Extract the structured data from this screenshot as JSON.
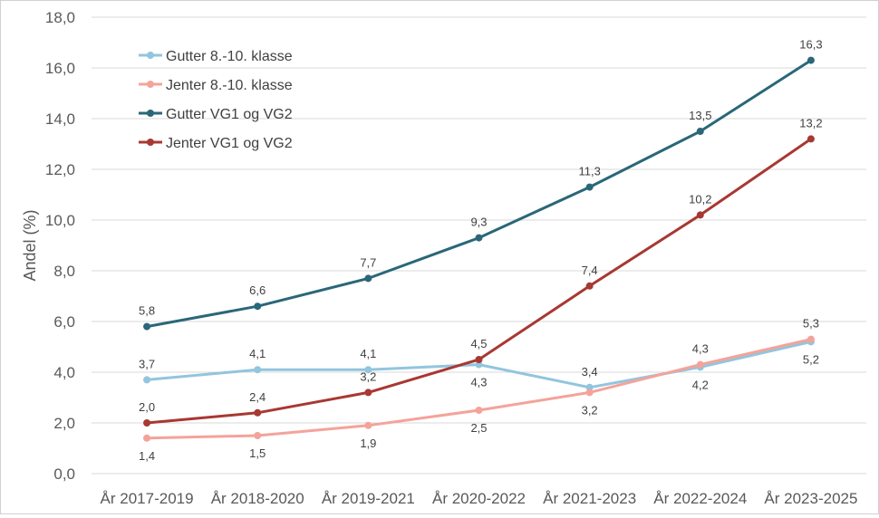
{
  "chart_data": {
    "type": "line",
    "title": "",
    "xlabel": "",
    "ylabel": "Andel (%)",
    "ylim": [
      0,
      18
    ],
    "ytick_step": 2,
    "ytick_labels": [
      "0,0",
      "2,0",
      "4,0",
      "6,0",
      "8,0",
      "10,0",
      "12,0",
      "14,0",
      "16,0",
      "18,0"
    ],
    "grid": true,
    "legend_position": "top-left",
    "categories": [
      "År 2017-2019",
      "År 2018-2020",
      "År 2019-2021",
      "År 2020-2022",
      "År 2021-2023",
      "År 2022-2024",
      "År 2023-2025"
    ],
    "series": [
      {
        "name": "Gutter 8.-10. klasse",
        "color": "#92c5de",
        "values": [
          3.7,
          4.1,
          4.1,
          4.3,
          3.4,
          4.2,
          5.2
        ],
        "labels": [
          "3,7",
          "4,1",
          "4,1",
          "4,3",
          "3,4",
          "4,2",
          "5,2"
        ],
        "label_pos": [
          "above",
          "above",
          "above",
          "below",
          "above",
          "below",
          "below"
        ]
      },
      {
        "name": "Jenter 8.-10. klasse",
        "color": "#f4a39a",
        "values": [
          1.4,
          1.5,
          1.9,
          2.5,
          3.2,
          4.3,
          5.3
        ],
        "labels": [
          "1,4",
          "1,5",
          "1,9",
          "2,5",
          "3,2",
          "4,3",
          "5,3"
        ],
        "label_pos": [
          "below",
          "below",
          "below",
          "below",
          "below",
          "above",
          "above"
        ]
      },
      {
        "name": "Gutter VG1 og VG2",
        "color": "#2a6778",
        "values": [
          5.8,
          6.6,
          7.7,
          9.3,
          11.3,
          13.5,
          16.3
        ],
        "labels": [
          "5,8",
          "6,6",
          "7,7",
          "9,3",
          "11,3",
          "13,5",
          "16,3"
        ],
        "label_pos": [
          "above",
          "above",
          "above",
          "above",
          "above",
          "above",
          "above"
        ]
      },
      {
        "name": "Jenter VG1 og VG2",
        "color": "#a83832",
        "values": [
          2.0,
          2.4,
          3.2,
          4.5,
          7.4,
          10.2,
          13.2
        ],
        "labels": [
          "2,0",
          "2,4",
          "3,2",
          "4,5",
          "7,4",
          "10,2",
          "13,2"
        ],
        "label_pos": [
          "above",
          "above",
          "above",
          "above",
          "above",
          "above",
          "above"
        ]
      }
    ]
  }
}
